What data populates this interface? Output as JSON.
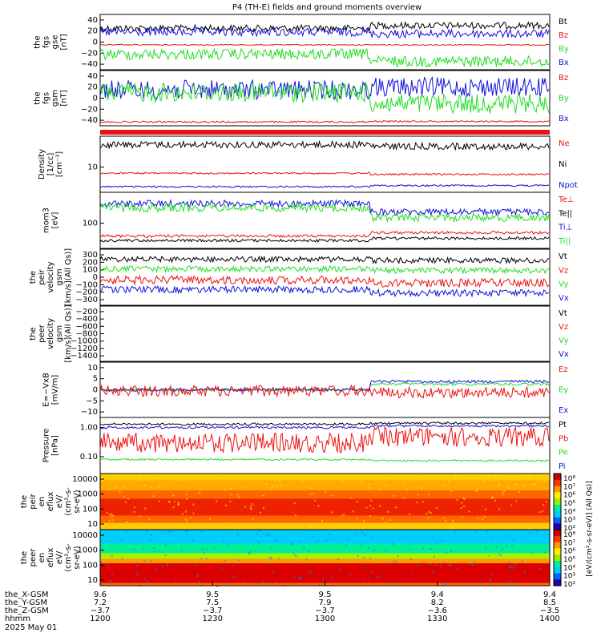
{
  "title": "P4 (TH-E) fields and ground moments overview",
  "colors": {
    "black": "#000000",
    "red": "#ee1111",
    "green": "#22dd22",
    "blue": "#1111dd"
  },
  "panels": [
    {
      "id": "fgs-gse",
      "ylabel": [
        "the",
        "fgs",
        "gse",
        "[nT]"
      ],
      "ytick_labels": [
        "40",
        "20",
        "0",
        "−20",
        "−40"
      ],
      "ylim": [
        -55,
        55
      ],
      "legend": [
        {
          "text": "Bt",
          "color": "#000000"
        },
        {
          "text": "Bz",
          "color": "#ee1111"
        },
        {
          "text": "By",
          "color": "#22dd22"
        },
        {
          "text": "Bx",
          "color": "#1111dd"
        }
      ]
    },
    {
      "id": "fgs-gsm",
      "ylabel": [
        "the",
        "fgs",
        "gsm",
        "[nT]"
      ],
      "ytick_labels": [
        "40",
        "20",
        "0",
        "−20",
        "−40"
      ],
      "ylim": [
        -55,
        55
      ],
      "legend": [
        {
          "text": "Bz",
          "color": "#ee1111"
        },
        {
          "text": "By",
          "color": "#22dd22"
        },
        {
          "text": "Bx",
          "color": "#1111dd"
        }
      ]
    },
    {
      "id": "density",
      "ylabel": [
        "Density",
        "[1/cc]",
        "[cm⁻³]"
      ],
      "ytick_labels": [
        "10"
      ],
      "log": true,
      "ylim": [
        0.5,
        50
      ],
      "legend": [
        {
          "text": "Ne",
          "color": "#ee1111"
        },
        {
          "text": "Ni",
          "color": "#000000"
        },
        {
          "text": "Npot",
          "color": "#1111dd"
        }
      ]
    },
    {
      "id": "temperature",
      "ylabel": [
        "mom3",
        "[eV]"
      ],
      "ytick_labels": [
        "100"
      ],
      "log": true,
      "ylim": [
        30,
        10000
      ],
      "legend": [
        {
          "text": "Te⊥",
          "color": "#ee1111"
        },
        {
          "text": "Te||",
          "color": "#000000"
        },
        {
          "text": "Ti⊥",
          "color": "#1111dd"
        },
        {
          "text": "Ti||",
          "color": "#22dd22"
        }
      ]
    },
    {
      "id": "peir-velocity",
      "ylabel": [
        "the",
        "peir",
        "velocity",
        "gsm",
        "[km/s](All Qs)]"
      ],
      "ytick_labels": [
        "300",
        "200",
        "100",
        "0",
        "−100",
        "−200",
        "−300"
      ],
      "ylim": [
        -320,
        330
      ],
      "legend": [
        {
          "text": "Vt",
          "color": "#000000"
        },
        {
          "text": "Vz",
          "color": "#ee1111"
        },
        {
          "text": "Vy",
          "color": "#22dd22"
        },
        {
          "text": "Vx",
          "color": "#1111dd"
        }
      ]
    },
    {
      "id": "peer-velocity",
      "ylabel": [
        "the",
        "peer",
        "velocity",
        "gsm",
        "[km/s](All Qs)]"
      ],
      "ytick_labels": [
        "−200",
        "−400",
        "−600",
        "−800",
        "−1000",
        "−1200",
        "−1400"
      ],
      "ylim": [
        -1500,
        -100
      ],
      "legend": [
        {
          "text": "Vt",
          "color": "#000000"
        },
        {
          "text": "Vz",
          "color": "#ee1111"
        },
        {
          "text": "Vy",
          "color": "#22dd22"
        },
        {
          "text": "Vx",
          "color": "#1111dd"
        }
      ]
    },
    {
      "id": "efield",
      "ylabel": [
        "E=−VxB",
        "[mV/m]"
      ],
      "ytick_labels": [
        "10",
        "5",
        "0",
        "−5",
        "−10"
      ],
      "ylim": [
        -11,
        11
      ],
      "legend": [
        {
          "text": "Ez",
          "color": "#ee1111"
        },
        {
          "text": "Ey",
          "color": "#22dd22"
        },
        {
          "text": "Ex",
          "color": "#1111dd"
        }
      ]
    },
    {
      "id": "pressure",
      "ylabel": [
        "Pressure",
        "[nPa]"
      ],
      "ytick_labels": [
        "1.00",
        "0.10"
      ],
      "log": true,
      "ylim": [
        0.01,
        2
      ],
      "legend": [
        {
          "text": "Pt",
          "color": "#000000"
        },
        {
          "text": "Pb",
          "color": "#ee1111"
        },
        {
          "text": "Pe",
          "color": "#22dd22"
        },
        {
          "text": "Pi",
          "color": "#1111dd"
        }
      ]
    },
    {
      "id": "peir-eflux",
      "ylabel": [
        "the",
        "peir",
        "en",
        "eflux",
        "eV/",
        "(cm²-s-",
        "sr-eV)"
      ],
      "ytick_labels": [
        "10000",
        "1000",
        "100",
        "10"
      ],
      "log": true,
      "ylim": [
        5,
        20000
      ]
    },
    {
      "id": "peer-eflux",
      "ylabel": [
        "the",
        "peer",
        "en",
        "eflux",
        "eV/",
        "(cm²-s-",
        "sr-eV)"
      ],
      "ytick_labels": [
        "10000",
        "1000",
        "100",
        "10"
      ],
      "log": true,
      "ylim": [
        5,
        20000
      ]
    }
  ],
  "colorbar": {
    "tick_labels": [
      "10⁸",
      "10⁷",
      "10⁶",
      "10⁵",
      "10⁴",
      "10³",
      "10²"
    ],
    "label": "[eV/(cm²-s-sr-eV)] (All Qs)]",
    "range": [
      100,
      100000000
    ]
  },
  "x_axis": {
    "row_labels": [
      "the_X-GSM",
      "the_Y-GSM",
      "the_Z-GSM",
      "hhmm",
      "2025 May 01"
    ],
    "columns": [
      {
        "x": "9.6",
        "y": "7.2",
        "z": "−3.7",
        "hhmm": "1200"
      },
      {
        "x": "9.5",
        "y": "7.5",
        "z": "−3.7",
        "hhmm": "1230"
      },
      {
        "x": "9.5",
        "y": "7.9",
        "z": "−3.7",
        "hhmm": "1300"
      },
      {
        "x": "9.4",
        "y": "8.2",
        "z": "−3.6",
        "hhmm": "1330"
      },
      {
        "x": "9.4",
        "y": "8.5",
        "z": "−3.5",
        "hhmm": "1400"
      }
    ]
  },
  "chart_data": {
    "type": "line",
    "title": "P4 (TH-E) fields and ground moments overview",
    "x": [
      "1200",
      "1230",
      "1300",
      "1330",
      "1400"
    ],
    "xlabel": "hhmm",
    "panels": [
      {
        "id": "fgs-gse",
        "ylim": [
          -55,
          55
        ],
        "series": [
          {
            "name": "Bt",
            "values": [
              30,
              30,
              32,
              38,
              28
            ]
          },
          {
            "name": "Bz",
            "values": [
              0,
              0,
              0,
              0,
              0
            ]
          },
          {
            "name": "By",
            "values": [
              -10,
              -5,
              5,
              -20,
              -15
            ]
          },
          {
            "name": "Bx",
            "values": [
              20,
              15,
              20,
              10,
              15
            ]
          }
        ]
      },
      {
        "id": "fgs-gsm",
        "ylim": [
          -55,
          55
        ],
        "series": [
          {
            "name": "Bz",
            "values": [
              -45,
              -45,
              -42,
              -45,
              -44
            ]
          },
          {
            "name": "By",
            "values": [
              0,
              10,
              25,
              -20,
              5
            ]
          },
          {
            "name": "Bx",
            "values": [
              10,
              5,
              0,
              20,
              10
            ]
          }
        ]
      },
      {
        "id": "density",
        "ylim": [
          0.5,
          50
        ],
        "series": [
          {
            "name": "Ni",
            "values": [
              30,
              30,
              32,
              28,
              28
            ]
          },
          {
            "name": "Ne",
            "values": [
              8,
              8,
              8,
              7,
              7
            ]
          },
          {
            "name": "Npot",
            "values": [
              2,
              2,
              2.2,
              2.5,
              2.5
            ]
          }
        ]
      },
      {
        "id": "temperature",
        "ylim": [
          30,
          10000
        ],
        "series": [
          {
            "name": "Ti⊥",
            "values": [
              2000,
              1800,
              2000,
              1200,
              2000
            ]
          },
          {
            "name": "Ti||",
            "values": [
              1500,
              1400,
              1600,
              800,
              1300
            ]
          },
          {
            "name": "Te⊥",
            "values": [
              60,
              80,
              80,
              70,
              80
            ]
          },
          {
            "name": "Te||",
            "values": [
              45,
              55,
              60,
              50,
              55
            ]
          }
        ]
      },
      {
        "id": "peir-velocity",
        "ylim": [
          -320,
          330
        ],
        "series": [
          {
            "name": "Vt",
            "values": [
              200,
              180,
              250,
              150,
              170
            ]
          },
          {
            "name": "Vz",
            "values": [
              -20,
              -50,
              20,
              -150,
              -20
            ]
          },
          {
            "name": "Vy",
            "values": [
              50,
              20,
              30,
              -20,
              30
            ]
          },
          {
            "name": "Vx",
            "values": [
              -150,
              -100,
              -80,
              -200,
              -120
            ]
          }
        ]
      },
      {
        "id": "efield",
        "ylim": [
          -11,
          11
        ],
        "series": [
          {
            "name": "Ez",
            "values": [
              0,
              -1,
              0,
              -2,
              -1
            ]
          },
          {
            "name": "Ey",
            "values": [
              0,
              0,
              0,
              3,
              0
            ]
          },
          {
            "name": "Ex",
            "values": [
              0,
              0,
              0,
              4,
              0
            ]
          }
        ]
      },
      {
        "id": "pressure",
        "ylim": [
          0.01,
          2
        ],
        "series": [
          {
            "name": "Pt",
            "values": [
              1.0,
              0.9,
              1.0,
              1.1,
              1.0
            ]
          },
          {
            "name": "Pb",
            "values": [
              0.3,
              0.05,
              0.2,
              0.4,
              0.5
            ]
          },
          {
            "name": "Pe",
            "values": [
              0.06,
              0.05,
              0.06,
              0.05,
              0.05
            ]
          },
          {
            "name": "Pi",
            "values": [
              0.7,
              0.7,
              0.8,
              0.6,
              0.6
            ]
          }
        ]
      }
    ]
  }
}
